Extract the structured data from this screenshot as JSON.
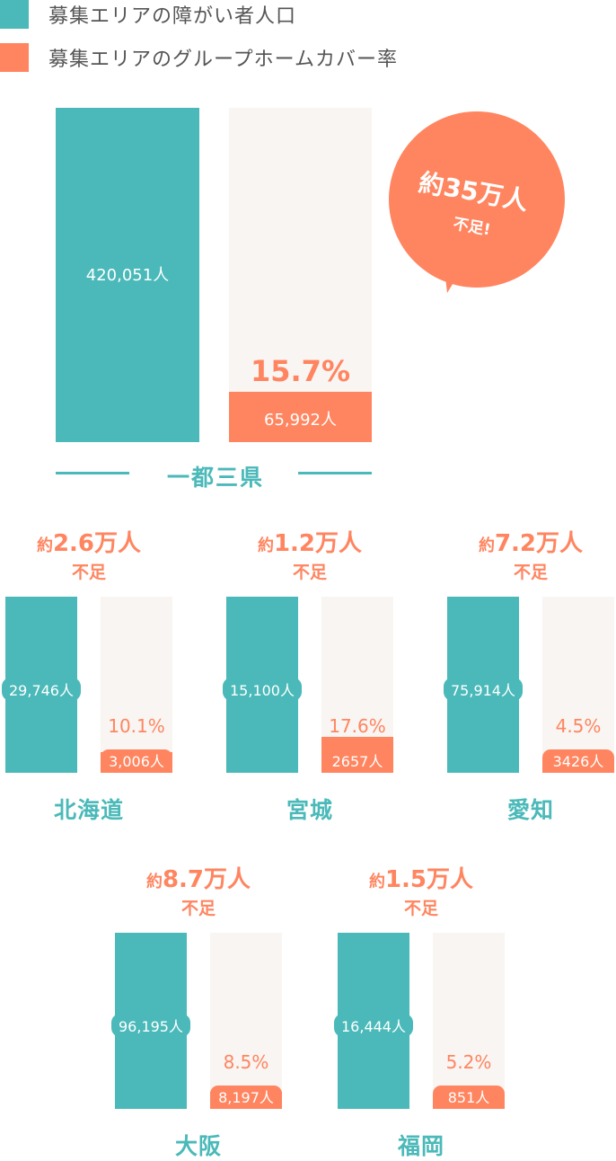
{
  "legend": {
    "items": [
      {
        "label": "募集エリアの障がい者人口",
        "color": "#4bb9b9"
      },
      {
        "label": "募集エリアのグループホームカバー率",
        "color": "#ff8560"
      }
    ]
  },
  "colors": {
    "teal": "#4bb9b9",
    "orange": "#ff8560",
    "bg_bar": "#f8f5f2"
  },
  "chart_data": [
    {
      "type": "bar",
      "region": "一都三県",
      "population_label": "420,051人",
      "covered_label": "65,992人",
      "coverage_pct_label": "15.7%",
      "coverage_fraction": 0.157,
      "shortage_label": "約35万人",
      "shortage_sub": "不足!"
    },
    {
      "type": "bar",
      "region": "北海道",
      "population_label": "29,746人",
      "covered_label": "3,006人",
      "coverage_pct_label": "10.1%",
      "coverage_fraction": 0.101,
      "shortage_prefix": "約",
      "shortage_value": "2.6万人",
      "shortage_sub": "不足"
    },
    {
      "type": "bar",
      "region": "宮城",
      "population_label": "15,100人",
      "covered_label": "2657人",
      "coverage_pct_label": "17.6%",
      "coverage_fraction": 0.176,
      "shortage_prefix": "約",
      "shortage_value": "1.2万人",
      "shortage_sub": "不足"
    },
    {
      "type": "bar",
      "region": "愛知",
      "population_label": "75,914人",
      "covered_label": "3426人",
      "coverage_pct_label": "4.5%",
      "coverage_fraction": 0.045,
      "shortage_prefix": "約",
      "shortage_value": "7.2万人",
      "shortage_sub": "不足"
    },
    {
      "type": "bar",
      "region": "大阪",
      "population_label": "96,195人",
      "covered_label": "8,197人",
      "coverage_pct_label": "8.5%",
      "coverage_fraction": 0.085,
      "shortage_prefix": "約",
      "shortage_value": "8.7万人",
      "shortage_sub": "不足"
    },
    {
      "type": "bar",
      "region": "福岡",
      "population_label": "16,444人",
      "covered_label": "851人",
      "coverage_pct_label": "5.2%",
      "coverage_fraction": 0.052,
      "shortage_prefix": "約",
      "shortage_value": "1.5万人",
      "shortage_sub": "不足"
    }
  ]
}
